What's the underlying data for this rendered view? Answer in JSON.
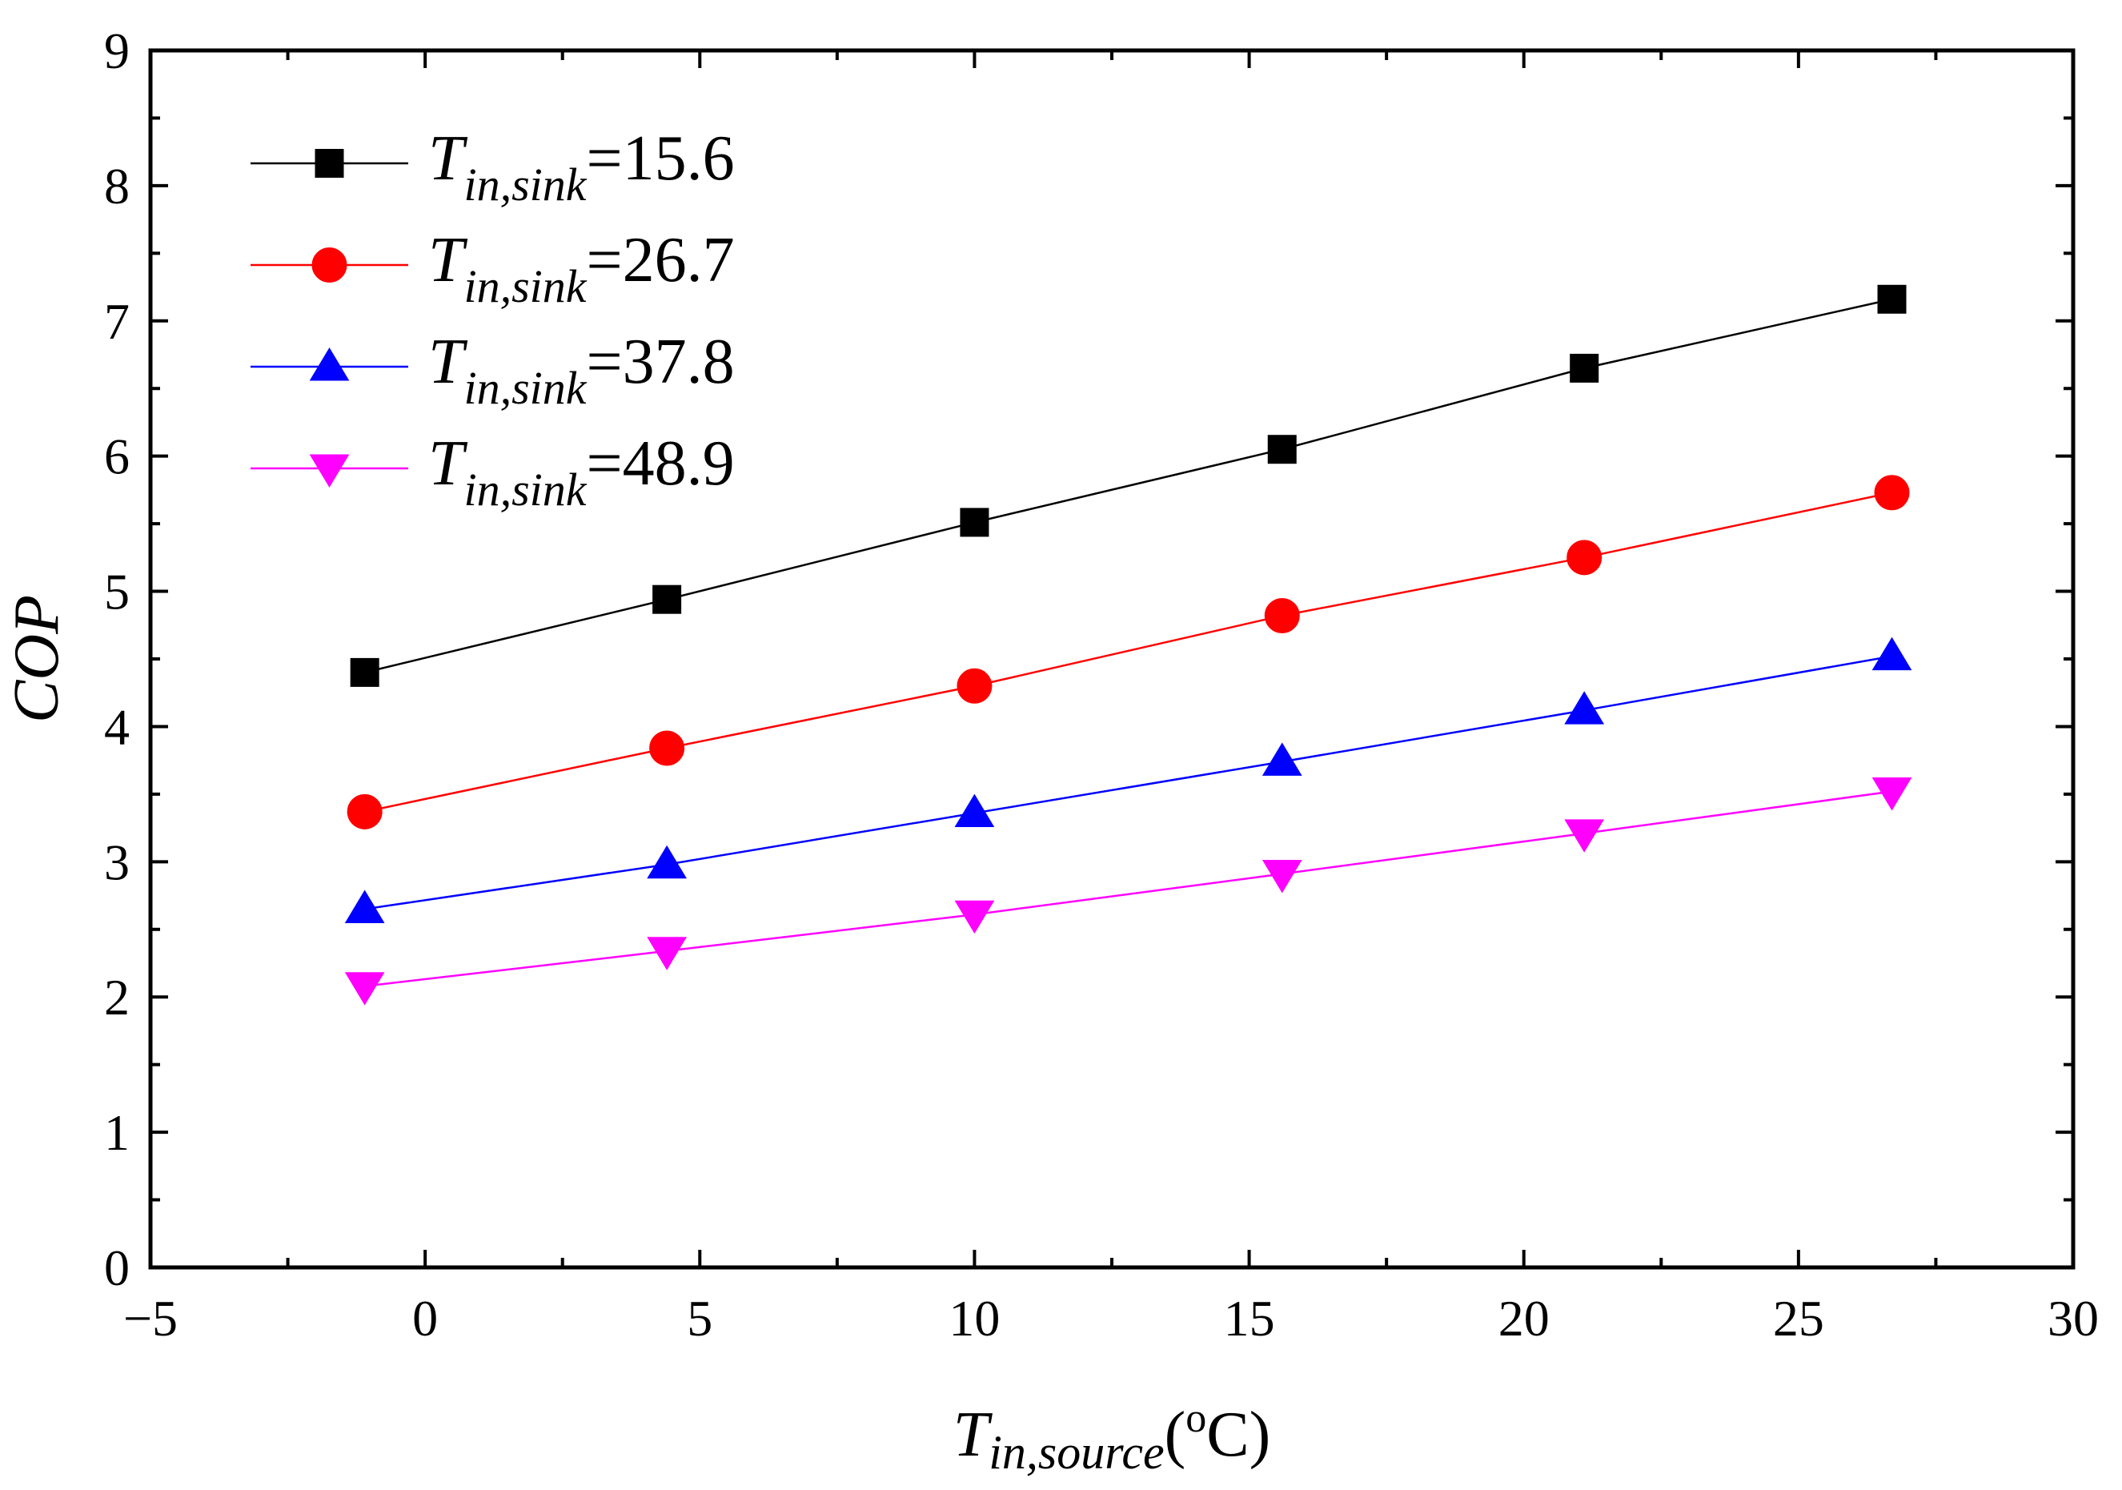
{
  "chart_data": {
    "type": "line",
    "title": "",
    "xlabel": {
      "main": "T",
      "sub": "in,source",
      "unit_open": "(",
      "unit_sup": "o",
      "unit_rest": "C)"
    },
    "ylabel": "COP",
    "xlim": [
      -5,
      30
    ],
    "ylim": [
      0,
      9
    ],
    "x_major_ticks": [
      -5,
      0,
      5,
      10,
      15,
      20,
      25,
      30
    ],
    "x_tick_labels": [
      "−5",
      "0",
      "5",
      "10",
      "15",
      "20",
      "25",
      "30"
    ],
    "y_major_ticks": [
      0,
      1,
      2,
      3,
      4,
      5,
      6,
      7,
      8,
      9
    ],
    "y_tick_labels": [
      "0",
      "1",
      "2",
      "3",
      "4",
      "5",
      "6",
      "7",
      "8",
      "9"
    ],
    "x": [
      -1.1,
      4.4,
      10.0,
      15.6,
      21.1,
      26.7
    ],
    "series": [
      {
        "name": "T_in,sink=15.6",
        "legend_main": "T",
        "legend_sub": "in,sink",
        "legend_value": "=15.6",
        "marker": "square",
        "color": "#000000",
        "values": [
          4.4,
          4.94,
          5.51,
          6.05,
          6.65,
          7.16
        ]
      },
      {
        "name": "T_in,sink=26.7",
        "legend_main": "T",
        "legend_sub": "in,sink",
        "legend_value": "=26.7",
        "marker": "circle",
        "color": "#ff0000",
        "values": [
          3.37,
          3.84,
          4.3,
          4.82,
          5.25,
          5.73
        ]
      },
      {
        "name": "T_in,sink=37.8",
        "legend_main": "T",
        "legend_sub": "in,sink",
        "legend_value": "=37.8",
        "marker": "triangle-up",
        "color": "#0000ff",
        "values": [
          2.65,
          2.98,
          3.36,
          3.74,
          4.12,
          4.52
        ]
      },
      {
        "name": "T_in,sink=48.9",
        "legend_main": "T",
        "legend_sub": "in,sink",
        "legend_value": "=48.9",
        "marker": "triangle-down",
        "color": "#ff00ff",
        "values": [
          2.08,
          2.34,
          2.61,
          2.91,
          3.21,
          3.52
        ]
      }
    ],
    "legend_position": "top-left",
    "grid": false
  }
}
